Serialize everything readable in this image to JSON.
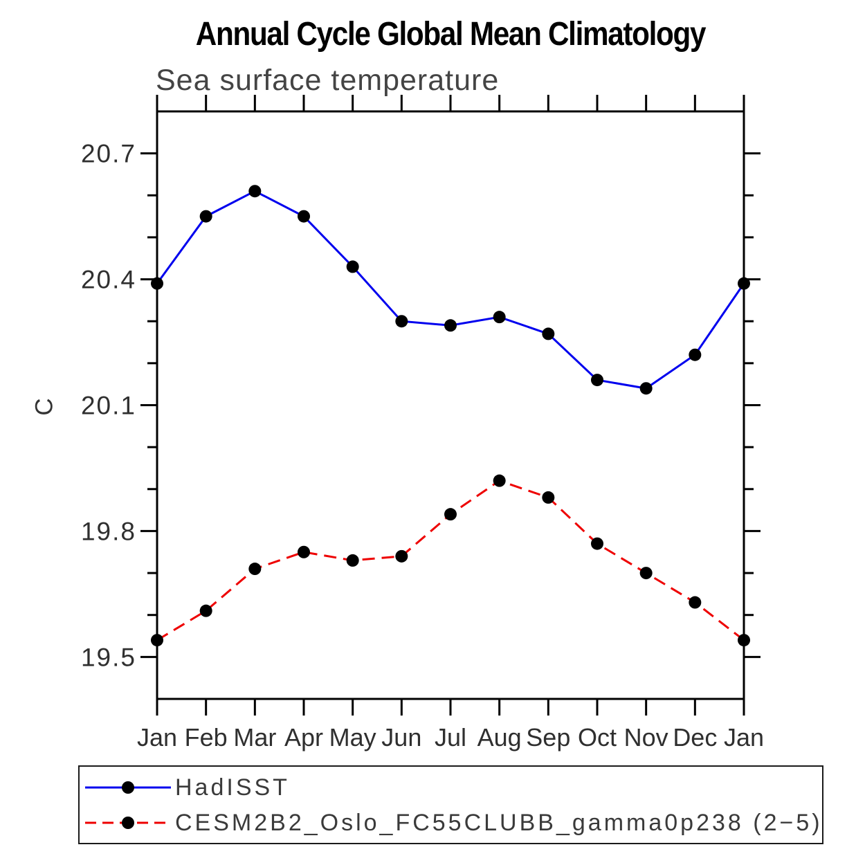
{
  "figure": {
    "title": "Annual Cycle Global Mean Climatology",
    "subtitle": "Sea surface temperature",
    "ylabel": "C"
  },
  "legend": {
    "entries": [
      {
        "label": "HadISST",
        "color": "#0000ee",
        "line_style": "solid"
      },
      {
        "label": "CESM2B2_Oslo_FC55CLUBB_gamma0p238 (2−5)",
        "color": "#ee0000",
        "line_style": "dashed"
      }
    ]
  },
  "chart_data": {
    "type": "line",
    "title": "Annual Cycle Global Mean Climatology",
    "subtitle": "Sea surface temperature",
    "xlabel": "",
    "ylabel": "C",
    "categories": [
      "Jan",
      "Feb",
      "Mar",
      "Apr",
      "May",
      "Jun",
      "Jul",
      "Aug",
      "Sep",
      "Oct",
      "Nov",
      "Dec",
      "Jan"
    ],
    "series": [
      {
        "name": "HadISST",
        "color": "#0000ee",
        "style": "solid",
        "marker": "filled-circle",
        "marker_color": "#000000",
        "values": [
          20.39,
          20.55,
          20.61,
          20.55,
          20.43,
          20.3,
          20.29,
          20.31,
          20.27,
          20.16,
          20.14,
          20.22,
          20.39
        ]
      },
      {
        "name": "CESM2B2_Oslo_FC55CLUBB_gamma0p238 (2−5)",
        "color": "#ee0000",
        "style": "dashed",
        "marker": "filled-circle",
        "marker_color": "#000000",
        "values": [
          19.54,
          19.61,
          19.71,
          19.75,
          19.73,
          19.74,
          19.84,
          19.92,
          19.88,
          19.77,
          19.7,
          19.63,
          19.54
        ]
      }
    ],
    "ylim": [
      19.4,
      20.8
    ],
    "yticks_major": [
      19.5,
      19.8,
      20.1,
      20.4,
      20.7
    ],
    "ytick_minor_step": 0.1,
    "grid": false,
    "legend_position": "bottom"
  }
}
